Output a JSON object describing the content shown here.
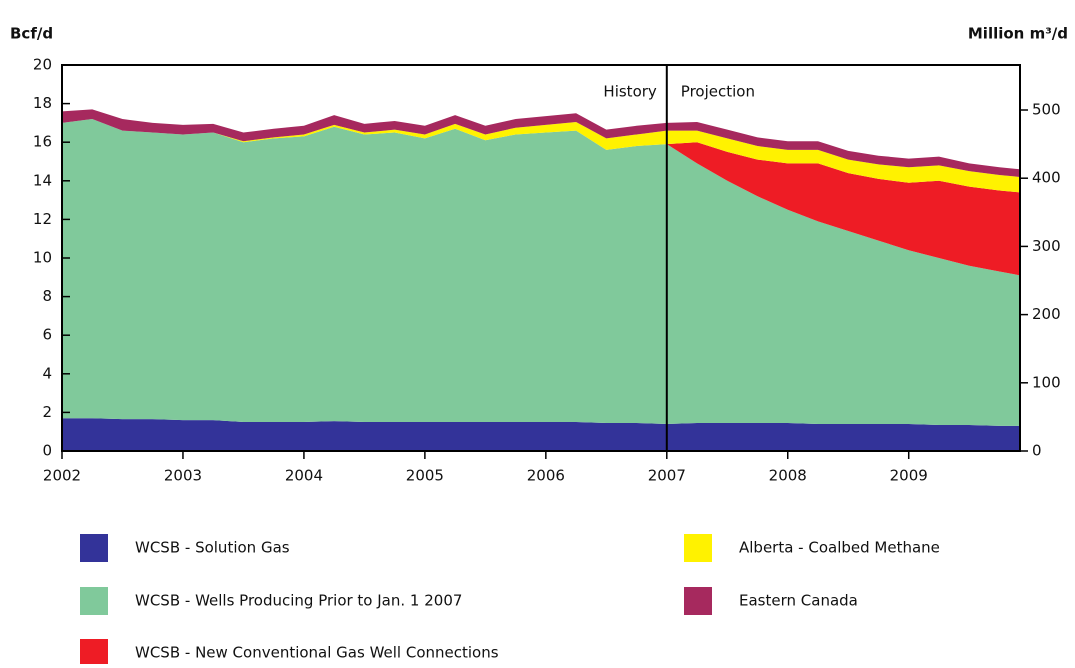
{
  "chart_data": {
    "type": "stacked_area",
    "y_label": "Bcf/d",
    "y2_label": "Million m³/d",
    "x": [
      2002,
      2002.25,
      2002.5,
      2002.75,
      2003,
      2003.25,
      2003.5,
      2003.75,
      2004,
      2004.25,
      2004.5,
      2004.75,
      2005,
      2005.25,
      2005.5,
      2005.75,
      2006,
      2006.25,
      2006.5,
      2006.75,
      2007,
      2007.25,
      2007.5,
      2007.75,
      2008,
      2008.25,
      2008.5,
      2008.75,
      2009,
      2009.25,
      2009.5,
      2009.75,
      2009.92
    ],
    "xlim": [
      2002,
      2009.92
    ],
    "xticks": [
      2002,
      2003,
      2004,
      2005,
      2006,
      2007,
      2008,
      2009
    ],
    "ylim": [
      0,
      20
    ],
    "yticks": [
      0,
      2,
      4,
      6,
      8,
      10,
      12,
      14,
      16,
      18,
      20
    ],
    "y2lim": [
      0,
      566
    ],
    "y2ticks": [
      0,
      100,
      200,
      300,
      400,
      500
    ],
    "divider": {
      "x": 2007,
      "left_label": "History",
      "right_label": "Projection"
    },
    "series": [
      {
        "name": "WCSB - Solution Gas",
        "color": "#333399",
        "values": [
          1.7,
          1.7,
          1.65,
          1.65,
          1.6,
          1.6,
          1.5,
          1.5,
          1.5,
          1.55,
          1.5,
          1.5,
          1.5,
          1.5,
          1.5,
          1.5,
          1.5,
          1.5,
          1.45,
          1.45,
          1.4,
          1.45,
          1.45,
          1.45,
          1.45,
          1.4,
          1.4,
          1.4,
          1.4,
          1.35,
          1.35,
          1.3,
          1.3
        ]
      },
      {
        "name": "WCSB - Wells Producing Prior to Jan. 1 2007",
        "color": "#80c99b",
        "values": [
          15.3,
          15.5,
          14.95,
          14.85,
          14.8,
          14.9,
          14.5,
          14.7,
          14.8,
          15.25,
          14.9,
          15.0,
          14.7,
          15.2,
          14.6,
          14.9,
          15.0,
          15.1,
          14.15,
          14.35,
          14.5,
          13.45,
          12.55,
          11.75,
          11.05,
          10.5,
          10.0,
          9.5,
          9.0,
          8.65,
          8.25,
          8.0,
          7.8
        ]
      },
      {
        "name": "WCSB - New Conventional Gas Well Connections",
        "color": "#ee1c25",
        "values": [
          0,
          0,
          0,
          0,
          0,
          0,
          0,
          0,
          0,
          0,
          0,
          0,
          0,
          0,
          0,
          0,
          0,
          0,
          0,
          0,
          0,
          1.1,
          1.5,
          1.9,
          2.4,
          3.0,
          3.0,
          3.2,
          3.5,
          4.0,
          4.1,
          4.2,
          4.3
        ]
      },
      {
        "name": "Alberta - Coalbed Methane",
        "color": "#fff200",
        "values": [
          0,
          0,
          0,
          0,
          0,
          0,
          0.05,
          0.05,
          0.1,
          0.1,
          0.1,
          0.15,
          0.2,
          0.25,
          0.3,
          0.35,
          0.4,
          0.45,
          0.6,
          0.6,
          0.7,
          0.6,
          0.7,
          0.7,
          0.7,
          0.7,
          0.7,
          0.75,
          0.8,
          0.8,
          0.8,
          0.8,
          0.8
        ]
      },
      {
        "name": "Eastern Canada",
        "color": "#a6295e",
        "values": [
          0.6,
          0.5,
          0.6,
          0.5,
          0.5,
          0.45,
          0.45,
          0.45,
          0.45,
          0.5,
          0.45,
          0.45,
          0.45,
          0.45,
          0.45,
          0.45,
          0.45,
          0.45,
          0.45,
          0.45,
          0.4,
          0.45,
          0.45,
          0.45,
          0.45,
          0.45,
          0.45,
          0.45,
          0.45,
          0.45,
          0.4,
          0.4,
          0.4
        ]
      }
    ]
  }
}
